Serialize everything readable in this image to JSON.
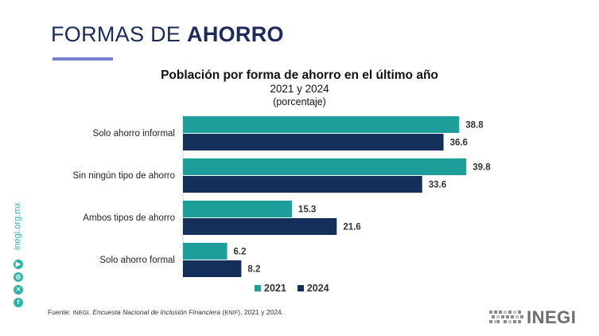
{
  "slide": {
    "title_regular": "FORMAS DE ",
    "title_bold": "AHORRO"
  },
  "chart_data": {
    "type": "bar",
    "orientation": "horizontal",
    "title": "Población por forma de ahorro en el último año",
    "subtitle": "2021 y 2024",
    "unit": "(porcentaje)",
    "categories": [
      "Solo ahorro informal",
      "Sin ningún tipo de ahorro",
      "Ambos tipos de ahorro",
      "Solo ahorro formal"
    ],
    "series": [
      {
        "name": "2021",
        "color": "#1e9e9a",
        "values": [
          38.8,
          39.8,
          15.3,
          6.2
        ]
      },
      {
        "name": "2024",
        "color": "#14305a",
        "values": [
          36.6,
          33.6,
          21.6,
          8.2
        ]
      }
    ],
    "xlim": [
      0,
      40
    ],
    "grid": false,
    "legend": "bottom-center",
    "data_labels": true
  },
  "source": {
    "prefix": "Fuente: ",
    "institution": "INEGI",
    "sep": ". ",
    "survey": "Encuesta Nacional de Inclusión Financiera",
    "abbr_open": " (",
    "abbr": "ENIF",
    "abbr_close": ")",
    "years": ", 2021 y 2024."
  },
  "sidebar": {
    "url": "inegi.org.mx",
    "accent_color": "#2bb5a5",
    "icons": [
      "twitter-x-icon",
      "instagram-icon",
      "youtube-icon",
      "facebook-icon"
    ]
  },
  "logo": {
    "text": "INEGI"
  }
}
